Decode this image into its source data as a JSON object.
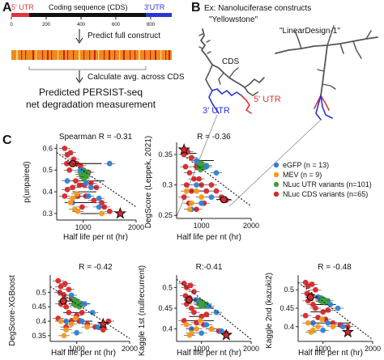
{
  "panel_labels": {
    "A": "A",
    "B": "B",
    "C": "C"
  },
  "panelA": {
    "seq_5utr": "5' UTR",
    "seq_cds": "Coding sequence (CDS)",
    "seq_3utr": "3'UTR",
    "ticks": [
      "0",
      "200",
      "400",
      "600",
      "800"
    ],
    "step1": "Predict full construct",
    "step2": "Calculate avg. across CDS",
    "result_line1": "Predicted PERSIST-seq",
    "result_line2": "net degradation measurement",
    "colors": {
      "utr5": "#e0343c",
      "cds": "#111111",
      "utr3": "#2b35d6",
      "heat_base": "#f08a1c",
      "heat_hi": "#c9201e"
    }
  },
  "panelB": {
    "title": "Ex: Nanoluciferase constructs",
    "label_yellowstone": "\"Yellowstone\"",
    "label_lineardesign": "\"LinearDesign-1\"",
    "label_cds": "CDS",
    "label_3utr": "3' UTR",
    "label_5utr": "5' UTR",
    "colors": {
      "backbone": "#555555",
      "utr3": "#2b35d6",
      "utr5": "#e0343c"
    }
  },
  "legend": [
    {
      "label": "eGFP (n = 13)",
      "color": "#2f82d6"
    },
    {
      "label": "MEV (n = 9)",
      "color": "#f39a1e"
    },
    {
      "label": "NLuc UTR variants (n=101)",
      "color": "#3ca23a"
    },
    {
      "label": "NLuc CDS variants (n=65)",
      "color": "#d7282a"
    }
  ],
  "chart_data": [
    {
      "type": "scatter",
      "title": "Spearman R = -0.31",
      "xlabel": "Half life per nt (hr)",
      "ylabel": "p(unpaired)",
      "xlim": [
        500,
        2000
      ],
      "ylim": [
        0.27,
        0.62
      ],
      "xticks": [
        1000,
        2000
      ],
      "yticks": [
        0.3,
        0.4,
        0.5,
        0.6
      ],
      "trend": [
        [
          500,
          0.58
        ],
        [
          2000,
          0.33
        ]
      ],
      "star": {
        "x": 1700,
        "y": 0.3
      },
      "egfp": [
        [
          700,
          0.45
        ],
        [
          1150,
          0.42
        ],
        [
          1300,
          0.37
        ],
        [
          800,
          0.35
        ],
        [
          950,
          0.5
        ],
        [
          1500,
          0.53
        ],
        [
          1100,
          0.38
        ],
        [
          1300,
          0.33
        ],
        [
          1050,
          0.44
        ]
      ],
      "mev": [
        [
          760,
          0.35
        ],
        [
          840,
          0.32
        ],
        [
          880,
          0.39
        ],
        [
          800,
          0.37
        ],
        [
          1350,
          0.3
        ],
        [
          900,
          0.31
        ]
      ],
      "utr": [
        [
          960,
          0.48
        ],
        [
          1000,
          0.49
        ],
        [
          1040,
          0.47
        ],
        [
          980,
          0.47
        ],
        [
          1080,
          0.49
        ],
        [
          1010,
          0.5
        ],
        [
          950,
          0.49
        ],
        [
          1020,
          0.46
        ],
        [
          1060,
          0.47
        ]
      ],
      "cds": [
        [
          650,
          0.6
        ],
        [
          700,
          0.57
        ],
        [
          760,
          0.58
        ],
        [
          820,
          0.55
        ],
        [
          690,
          0.53
        ],
        [
          880,
          0.53
        ],
        [
          950,
          0.52
        ],
        [
          1000,
          0.5
        ],
        [
          1100,
          0.49
        ],
        [
          740,
          0.5
        ],
        [
          860,
          0.45
        ],
        [
          930,
          0.43
        ],
        [
          1020,
          0.43
        ],
        [
          1150,
          0.44
        ],
        [
          1250,
          0.42
        ],
        [
          700,
          0.41
        ],
        [
          800,
          0.42
        ],
        [
          900,
          0.38
        ],
        [
          1050,
          0.38
        ],
        [
          1200,
          0.36
        ],
        [
          1350,
          0.35
        ],
        [
          650,
          0.38
        ],
        [
          980,
          0.33
        ],
        [
          1400,
          0.33
        ],
        [
          1500,
          0.31
        ]
      ],
      "highlight": {
        "x": 800,
        "y": 0.53,
        "xerr": [
          700,
          1350
        ]
      },
      "err_bars": [
        [
          650,
          1250,
          0.35
        ],
        [
          900,
          1400,
          0.45
        ],
        [
          800,
          1250,
          0.4
        ],
        [
          950,
          1300,
          0.3
        ]
      ]
    },
    {
      "type": "scatter",
      "title": "R = -0.36",
      "xlabel": "Half life per nt (hr)",
      "ylabel": "DegScore (Leppek, 2021)",
      "xlim": [
        500,
        2000
      ],
      "ylim": [
        0.245,
        0.37
      ],
      "xticks": [
        1000,
        2000
      ],
      "yticks": [
        0.25,
        0.3,
        0.35
      ],
      "trend": [
        [
          700,
          0.345
        ],
        [
          2000,
          0.265
        ]
      ],
      "star": {
        "x": 650,
        "y": 0.358
      },
      "egfp": [
        [
          900,
          0.34
        ],
        [
          1100,
          0.33
        ],
        [
          1300,
          0.32
        ],
        [
          900,
          0.3
        ],
        [
          1200,
          0.28
        ],
        [
          1000,
          0.27
        ],
        [
          800,
          0.26
        ]
      ],
      "mev": [
        [
          700,
          0.29
        ],
        [
          800,
          0.27
        ],
        [
          900,
          0.29
        ],
        [
          760,
          0.26
        ],
        [
          1000,
          0.28
        ]
      ],
      "utr": [
        [
          950,
          0.33
        ],
        [
          1000,
          0.335
        ],
        [
          1050,
          0.33
        ],
        [
          980,
          0.325
        ],
        [
          1100,
          0.332
        ],
        [
          1020,
          0.328
        ],
        [
          960,
          0.337
        ]
      ],
      "cds": [
        [
          650,
          0.35
        ],
        [
          720,
          0.355
        ],
        [
          800,
          0.345
        ],
        [
          680,
          0.33
        ],
        [
          760,
          0.32
        ],
        [
          850,
          0.31
        ],
        [
          900,
          0.33
        ],
        [
          950,
          0.31
        ],
        [
          700,
          0.3
        ],
        [
          800,
          0.29
        ],
        [
          1000,
          0.3
        ],
        [
          1100,
          0.29
        ],
        [
          1200,
          0.3
        ],
        [
          750,
          0.27
        ],
        [
          900,
          0.26
        ],
        [
          1050,
          0.27
        ],
        [
          1300,
          0.29
        ],
        [
          1500,
          0.275
        ],
        [
          1400,
          0.28
        ],
        [
          650,
          0.28
        ]
      ],
      "highlight": {
        "x": 1450,
        "y": 0.276,
        "xerr": [
          1300,
          1600
        ]
      },
      "err_bars": [
        [
          600,
          900,
          0.352
        ],
        [
          900,
          1250,
          0.34
        ],
        [
          700,
          1150,
          0.29
        ]
      ]
    },
    {
      "type": "scatter",
      "title": "R = -0.42",
      "xlabel": "Half life per nt (hr)",
      "ylabel": "DegScore-XGBoost",
      "xlim": [
        500,
        2000
      ],
      "ylim": [
        0.33,
        0.56
      ],
      "xticks": [
        1000,
        2000
      ],
      "yticks": [
        0.35,
        0.4,
        0.45,
        0.5
      ],
      "trend": [
        [
          500,
          0.52
        ],
        [
          2000,
          0.34
        ]
      ],
      "star": {
        "x": 1500,
        "y": 0.39
      },
      "egfp": [
        [
          900,
          0.49
        ],
        [
          1150,
          0.46
        ],
        [
          1300,
          0.43
        ],
        [
          1100,
          0.4
        ],
        [
          800,
          0.4
        ],
        [
          1400,
          0.38
        ],
        [
          1000,
          0.36
        ]
      ],
      "mev": [
        [
          700,
          0.4
        ],
        [
          800,
          0.37
        ],
        [
          900,
          0.39
        ],
        [
          760,
          0.35
        ],
        [
          1200,
          0.38
        ],
        [
          980,
          0.41
        ]
      ],
      "utr": [
        [
          950,
          0.46
        ],
        [
          1000,
          0.47
        ],
        [
          1050,
          0.45
        ],
        [
          980,
          0.455
        ],
        [
          1100,
          0.46
        ],
        [
          1020,
          0.465
        ],
        [
          960,
          0.475
        ]
      ],
      "cds": [
        [
          650,
          0.54
        ],
        [
          700,
          0.52
        ],
        [
          780,
          0.53
        ],
        [
          850,
          0.51
        ],
        [
          680,
          0.5
        ],
        [
          760,
          0.49
        ],
        [
          900,
          0.48
        ],
        [
          950,
          0.47
        ],
        [
          700,
          0.46
        ],
        [
          800,
          0.45
        ],
        [
          850,
          0.43
        ],
        [
          1000,
          0.42
        ],
        [
          1100,
          0.43
        ],
        [
          650,
          0.41
        ],
        [
          900,
          0.4
        ],
        [
          1050,
          0.4
        ],
        [
          1200,
          0.39
        ],
        [
          1350,
          0.38
        ],
        [
          1500,
          0.37
        ],
        [
          800,
          0.38
        ],
        [
          1600,
          0.4
        ]
      ],
      "highlight": {
        "x": 750,
        "y": 0.47,
        "xerr": [
          650,
          900
        ]
      },
      "err_bars": [
        [
          650,
          1300,
          0.4
        ],
        [
          850,
          1250,
          0.46
        ],
        [
          750,
          1150,
          0.43
        ]
      ]
    },
    {
      "type": "scatter",
      "title": "R:-0.41",
      "xlabel": "Half life per nt (hr)",
      "ylabel": "Kaggle 1st (nullrecurrent)",
      "xlim": [
        500,
        2000
      ],
      "ylim": [
        0.37,
        0.53
      ],
      "xticks": [
        1000,
        2000
      ],
      "yticks": [
        0.4,
        0.45,
        0.5
      ],
      "trend": [
        [
          500,
          0.52
        ],
        [
          2000,
          0.375
        ]
      ],
      "star": {
        "x": 1500,
        "y": 0.385
      },
      "egfp": [
        [
          900,
          0.47
        ],
        [
          1150,
          0.455
        ],
        [
          1300,
          0.44
        ],
        [
          1100,
          0.41
        ],
        [
          800,
          0.4
        ],
        [
          1400,
          0.395
        ],
        [
          1000,
          0.39
        ]
      ],
      "mev": [
        [
          700,
          0.41
        ],
        [
          800,
          0.39
        ],
        [
          900,
          0.4
        ],
        [
          760,
          0.385
        ],
        [
          1200,
          0.4
        ],
        [
          980,
          0.42
        ]
      ],
      "utr": [
        [
          950,
          0.46
        ],
        [
          1000,
          0.465
        ],
        [
          1050,
          0.455
        ],
        [
          980,
          0.458
        ],
        [
          1100,
          0.46
        ],
        [
          1020,
          0.462
        ],
        [
          960,
          0.468
        ]
      ],
      "cds": [
        [
          650,
          0.51
        ],
        [
          700,
          0.5
        ],
        [
          780,
          0.505
        ],
        [
          850,
          0.49
        ],
        [
          680,
          0.48
        ],
        [
          760,
          0.475
        ],
        [
          900,
          0.47
        ],
        [
          950,
          0.465
        ],
        [
          700,
          0.46
        ],
        [
          800,
          0.45
        ],
        [
          850,
          0.44
        ],
        [
          1000,
          0.43
        ],
        [
          1100,
          0.435
        ],
        [
          650,
          0.42
        ],
        [
          900,
          0.415
        ],
        [
          1050,
          0.41
        ],
        [
          1200,
          0.4
        ],
        [
          1350,
          0.395
        ],
        [
          1500,
          0.39
        ],
        [
          800,
          0.4
        ]
      ],
      "highlight": {
        "x": 750,
        "y": 0.47,
        "xerr": [
          650,
          900
        ]
      },
      "err_bars": [
        [
          650,
          1250,
          0.42
        ],
        [
          850,
          1250,
          0.45
        ],
        [
          750,
          1150,
          0.43
        ]
      ]
    },
    {
      "type": "scatter",
      "title": "R = -0.48",
      "xlabel": "Half life per nt (hr)",
      "ylabel": "Kaggle 2nd (kazuki2)",
      "xlim": [
        500,
        2000
      ],
      "ylim": [
        0.36,
        0.54
      ],
      "xticks": [
        1000,
        2000
      ],
      "yticks": [
        0.4,
        0.45,
        0.5
      ],
      "trend": [
        [
          500,
          0.52
        ],
        [
          2000,
          0.365
        ]
      ],
      "star": {
        "x": 1500,
        "y": 0.385
      },
      "egfp": [
        [
          900,
          0.48
        ],
        [
          1150,
          0.46
        ],
        [
          1300,
          0.45
        ],
        [
          1100,
          0.41
        ],
        [
          800,
          0.41
        ],
        [
          1400,
          0.4
        ],
        [
          1000,
          0.39
        ]
      ],
      "mev": [
        [
          700,
          0.41
        ],
        [
          800,
          0.39
        ],
        [
          900,
          0.4
        ],
        [
          760,
          0.385
        ],
        [
          1200,
          0.4
        ],
        [
          980,
          0.42
        ]
      ],
      "utr": [
        [
          950,
          0.47
        ],
        [
          1000,
          0.475
        ],
        [
          1050,
          0.465
        ],
        [
          980,
          0.468
        ],
        [
          1100,
          0.47
        ],
        [
          1020,
          0.472
        ],
        [
          960,
          0.478
        ]
      ],
      "cds": [
        [
          650,
          0.52
        ],
        [
          700,
          0.51
        ],
        [
          780,
          0.515
        ],
        [
          850,
          0.5
        ],
        [
          680,
          0.49
        ],
        [
          760,
          0.485
        ],
        [
          900,
          0.48
        ],
        [
          950,
          0.475
        ],
        [
          700,
          0.47
        ],
        [
          800,
          0.46
        ],
        [
          850,
          0.45
        ],
        [
          1000,
          0.44
        ],
        [
          1100,
          0.445
        ],
        [
          650,
          0.43
        ],
        [
          900,
          0.425
        ],
        [
          1050,
          0.42
        ],
        [
          1200,
          0.41
        ],
        [
          1350,
          0.405
        ],
        [
          1500,
          0.4
        ],
        [
          800,
          0.41
        ]
      ],
      "highlight": {
        "x": 750,
        "y": 0.48,
        "xerr": [
          650,
          900
        ]
      },
      "err_bars": [
        [
          650,
          1550,
          0.41
        ],
        [
          850,
          1250,
          0.46
        ],
        [
          750,
          1150,
          0.44
        ]
      ]
    }
  ]
}
